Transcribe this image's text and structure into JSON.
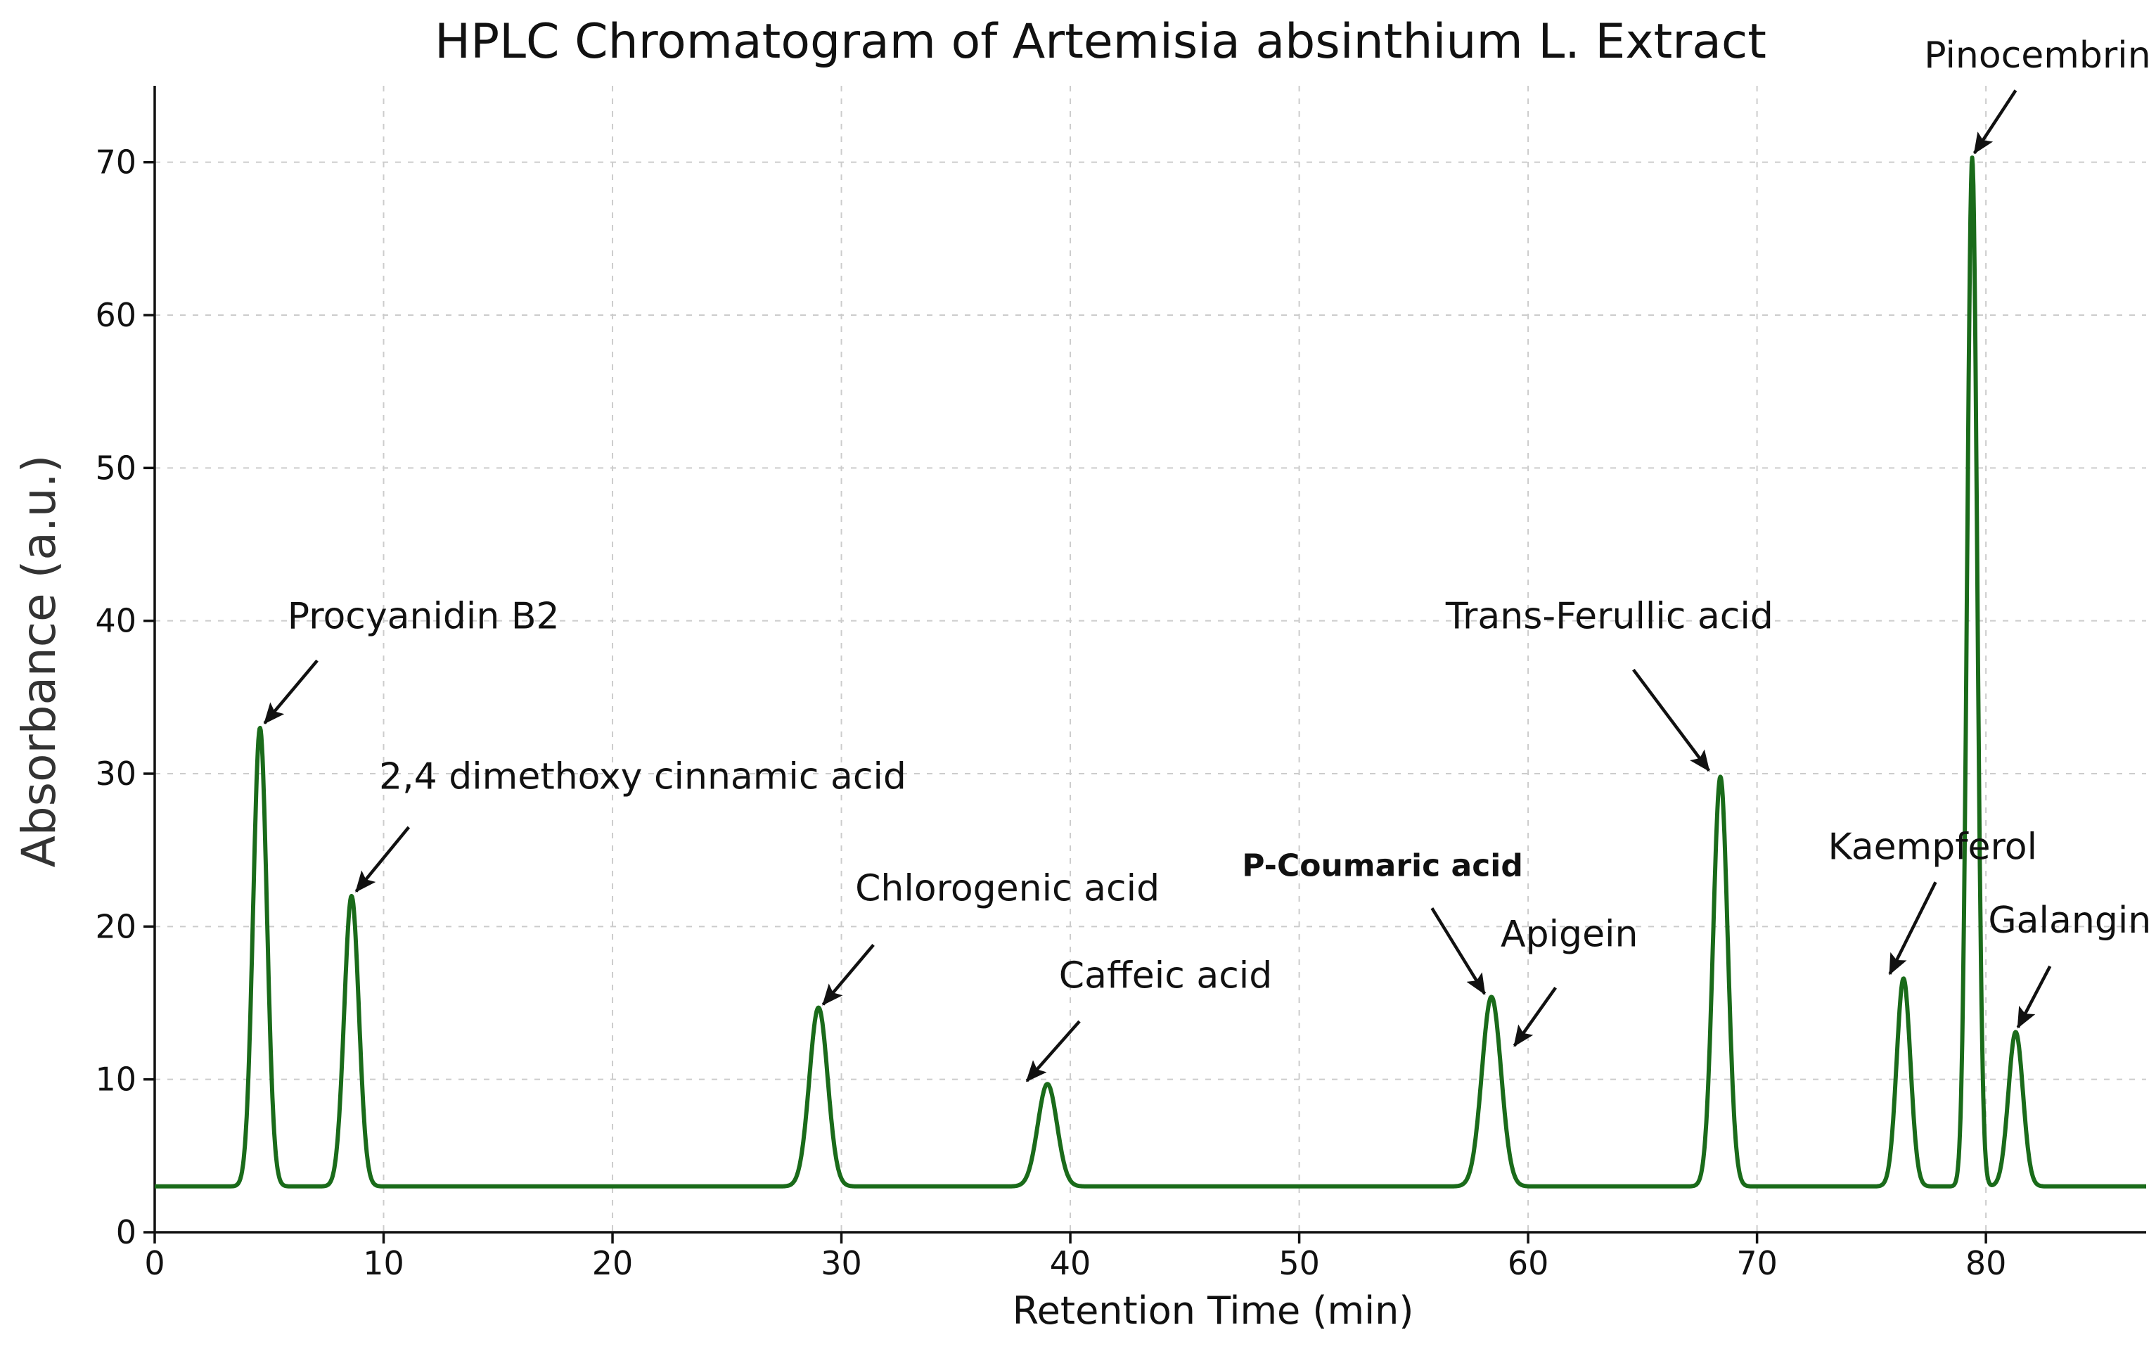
{
  "chart_data": {
    "type": "line",
    "title": "HPLC Chromatogram of Artemisia absinthium L. Extract",
    "xlabel": "Retention Time (min)",
    "ylabel": "Absorbance (a.u.)",
    "xlim": [
      0,
      87
    ],
    "ylim": [
      0,
      75
    ],
    "xticks": [
      0,
      10,
      20,
      30,
      40,
      50,
      60,
      70,
      80
    ],
    "yticks": [
      0,
      10,
      20,
      30,
      40,
      50,
      60,
      70
    ],
    "grid": true,
    "line_color": "#1a6b1a",
    "baseline": 3,
    "peaks": [
      {
        "x": 4.6,
        "y": 33.0,
        "width": 0.3
      },
      {
        "x": 8.6,
        "y": 22.0,
        "width": 0.32
      },
      {
        "x": 29.0,
        "y": 14.7,
        "width": 0.4
      },
      {
        "x": 39.0,
        "y": 9.7,
        "width": 0.42
      },
      {
        "x": 58.4,
        "y": 15.4,
        "width": 0.42
      },
      {
        "x": 68.4,
        "y": 29.8,
        "width": 0.32
      },
      {
        "x": 76.4,
        "y": 16.6,
        "width": 0.3
      },
      {
        "x": 79.4,
        "y": 70.3,
        "width": 0.22
      },
      {
        "x": 81.3,
        "y": 13.1,
        "width": 0.32
      }
    ],
    "annotations": [
      {
        "text": "Procyanidin B2",
        "bold": false,
        "label_x": 5.8,
        "label_y": 39.5,
        "arrow_from": [
          7.1,
          37.4
        ],
        "arrow_to": [
          4.8,
          33.3
        ]
      },
      {
        "text": "2,4 dimethoxy cinnamic acid",
        "bold": false,
        "label_x": 9.8,
        "label_y": 29.0,
        "arrow_from": [
          11.1,
          26.5
        ],
        "arrow_to": [
          8.8,
          22.3
        ]
      },
      {
        "text": "Chlorogenic acid",
        "bold": false,
        "label_x": 30.6,
        "label_y": 21.7,
        "arrow_from": [
          31.4,
          18.8
        ],
        "arrow_to": [
          29.2,
          14.9
        ]
      },
      {
        "text": "Caffeic acid",
        "bold": false,
        "label_x": 39.5,
        "label_y": 16.0,
        "arrow_from": [
          40.4,
          13.8
        ],
        "arrow_to": [
          38.1,
          9.9
        ]
      },
      {
        "text": "P-Coumaric acid",
        "bold": true,
        "label_x": 47.5,
        "label_y": 23.3,
        "arrow_from": [
          55.8,
          21.2
        ],
        "arrow_to": [
          58.1,
          15.6
        ]
      },
      {
        "text": "Apigein",
        "bold": false,
        "label_x": 58.8,
        "label_y": 18.7,
        "arrow_from": [
          61.2,
          16.0
        ],
        "arrow_to": [
          59.4,
          12.2
        ]
      },
      {
        "text": "Trans-Ferullic acid",
        "bold": false,
        "label_x": 56.4,
        "label_y": 39.5,
        "arrow_from": [
          64.6,
          36.8
        ],
        "arrow_to": [
          67.9,
          30.2
        ]
      },
      {
        "text": "Kaempferol",
        "bold": false,
        "label_x": 73.1,
        "label_y": 24.4,
        "arrow_from": [
          77.8,
          22.9
        ],
        "arrow_to": [
          75.8,
          16.9
        ]
      },
      {
        "text": "Pinocembrin",
        "bold": false,
        "label_x": 77.3,
        "label_y": 76.2,
        "arrow_from": [
          81.3,
          74.7
        ],
        "arrow_to": [
          79.5,
          70.6
        ]
      },
      {
        "text": "Galangin",
        "bold": false,
        "label_x": 80.1,
        "label_y": 19.6,
        "arrow_from": [
          82.8,
          17.4
        ],
        "arrow_to": [
          81.4,
          13.4
        ]
      }
    ]
  }
}
